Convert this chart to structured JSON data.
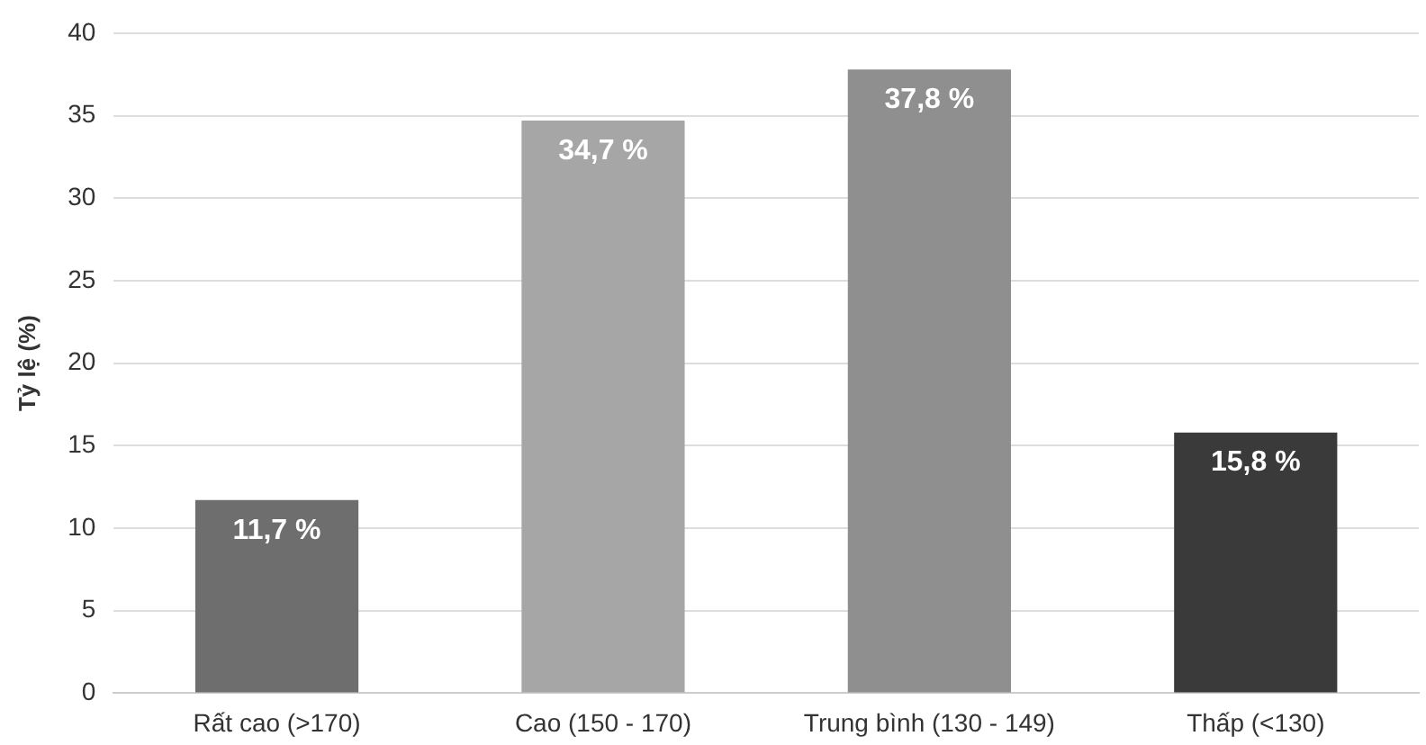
{
  "chart_data": {
    "type": "bar",
    "ylabel": "Tỷ lệ (%)",
    "categories": [
      "Rất cao (>170)",
      "Cao (150 - 170)",
      "Trung bình (130 - 149)",
      "Thấp (<130)"
    ],
    "values": [
      11.7,
      34.7,
      37.8,
      15.8
    ],
    "colors": [
      "#6e6e6e",
      "#a6a6a6",
      "#8f8f8f",
      "#3a3a3a"
    ],
    "value_labels": [
      "11,7 %",
      "34,7 %",
      "37,8 %",
      "15,8 %"
    ],
    "ylim": [
      0,
      40
    ],
    "yticks": [
      0,
      5,
      10,
      15,
      20,
      25,
      30,
      35,
      40
    ],
    "grid": "y",
    "legend": false
  }
}
